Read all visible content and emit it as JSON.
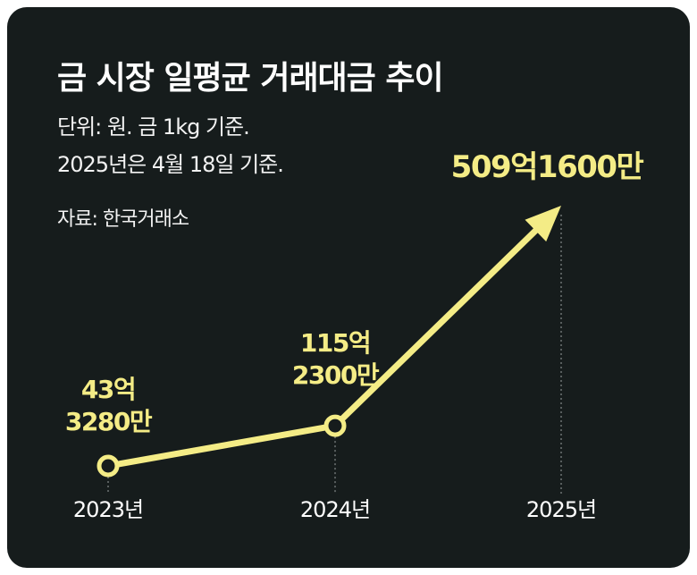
{
  "header": {
    "title": "금 시장 일평균 거래대금 추이",
    "unit_line": "단위: 원. 금 1kg 기준.",
    "date_line": "2025년은 4월 18일 기준.",
    "source": "자료: 한국거래소"
  },
  "colors": {
    "background": "#161c1c",
    "line": "#f4ec86",
    "text": "#ffffff"
  },
  "chart_data": {
    "type": "line",
    "title": "금 시장 일평균 거래대금 추이",
    "xlabel": "",
    "ylabel": "",
    "unit": "원",
    "categories": [
      "2023년",
      "2024년",
      "2025년"
    ],
    "values": [
      4332800000,
      11523000000,
      50916000000
    ],
    "value_labels": [
      [
        "43억",
        "3280만"
      ],
      [
        "115억",
        "2300만"
      ],
      [
        "509억1600만"
      ]
    ],
    "last_point_marker": "arrow",
    "grid": false,
    "legend": "none"
  }
}
